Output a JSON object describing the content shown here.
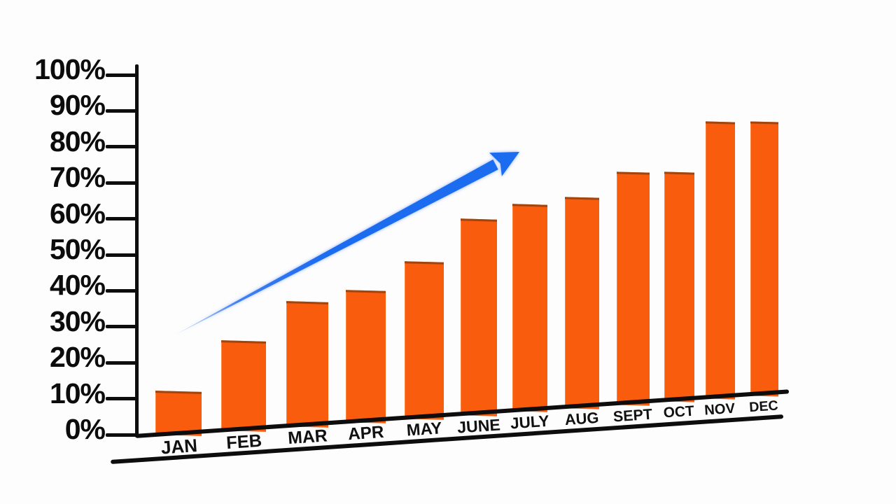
{
  "chart_data": {
    "type": "bar",
    "title": "",
    "xlabel": "",
    "ylabel": "",
    "categories": [
      "JAN",
      "FEB",
      "MAR",
      "APR",
      "MAY",
      "JUNE",
      "JULY",
      "AUG",
      "SEPT",
      "OCT",
      "NOV",
      "DEC"
    ],
    "values": [
      12,
      26,
      37,
      40,
      48,
      60,
      64,
      66,
      73,
      73,
      87,
      87
    ],
    "unit": "%",
    "ylim": [
      0,
      100
    ],
    "y_tick_interval": 10,
    "y_tick_labels": [
      "0%",
      "10%",
      "20%",
      "30%",
      "40%",
      "50%",
      "60%",
      "70%",
      "80%",
      "90%",
      "100%"
    ],
    "grid": false,
    "legend": false,
    "annotations": [
      {
        "type": "arrow",
        "name": "upward-trend-arrow",
        "start": {
          "near_category": "JAN",
          "value_pct": 28
        },
        "end": {
          "near_category": "JULY",
          "value_pct": 79
        },
        "color": "#1c6cf0"
      }
    ],
    "colors": {
      "bar": "#f85c0c",
      "bar_top_edge": "#8c3e0c",
      "axis": "#0d0d0d",
      "background": "#fdfdfd",
      "arrow": "#1c6cf0"
    },
    "layout_hints": {
      "baseline_tilt_deg": -3.9,
      "perspective": "bars and labels shrink slightly toward the right",
      "legend_position": "none"
    }
  }
}
